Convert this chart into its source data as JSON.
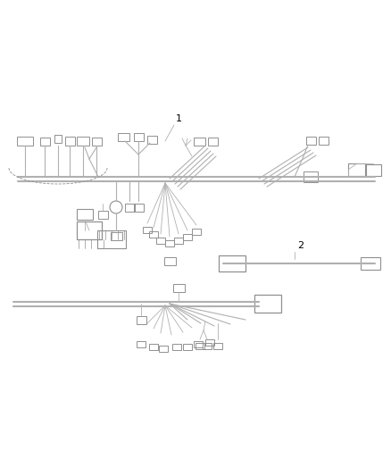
{
  "background_color": "#ffffff",
  "line_color": "#b0b0b0",
  "component_color": "#909090",
  "label_color": "#000000",
  "figsize": [
    4.38,
    5.33
  ],
  "dpi": 100,
  "label1": "1",
  "label2": "2"
}
